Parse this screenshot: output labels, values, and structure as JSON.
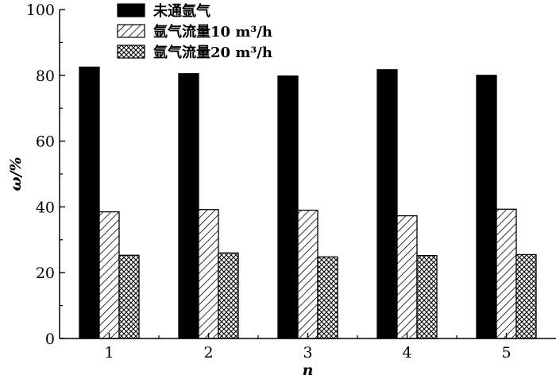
{
  "chart_data": {
    "type": "bar",
    "categories": [
      "1",
      "2",
      "3",
      "4",
      "5"
    ],
    "series": [
      {
        "name": "未通氩气",
        "values": [
          82.5,
          80.5,
          79.8,
          81.7,
          80.0
        ],
        "fill": "solid",
        "color": "#000000"
      },
      {
        "name": "氩气流量10 m³/h",
        "values": [
          38.5,
          39.2,
          39.0,
          37.3,
          39.3
        ],
        "fill": "hatch",
        "color": "#000000"
      },
      {
        "name": "氩气流量20 m³/h",
        "values": [
          25.3,
          26.0,
          24.8,
          25.2,
          25.5
        ],
        "fill": "crosshatch",
        "color": "#000000"
      }
    ],
    "xlabel": "n",
    "ylabel": "ω/%",
    "ylim": [
      0,
      100
    ],
    "yticks": [
      "0",
      "20",
      "40",
      "60",
      "80",
      "100"
    ],
    "grid": false,
    "legend_position": "top-left"
  }
}
